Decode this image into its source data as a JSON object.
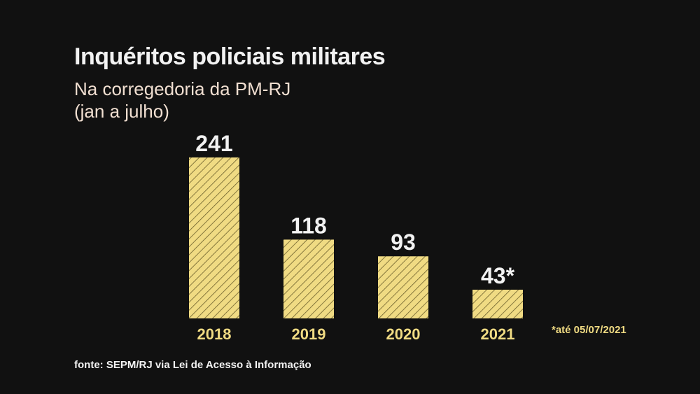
{
  "chart_data": {
    "type": "bar",
    "title": "Inquéritos policiais militares",
    "subtitle_lines": [
      "Na corregedoria da PM-RJ",
      "(jan a julho)"
    ],
    "categories": [
      "2018",
      "2019",
      "2020",
      "2021"
    ],
    "values": [
      241,
      118,
      93,
      43
    ],
    "data_labels": [
      "241",
      "118",
      "93",
      "43*"
    ],
    "xlabel": "",
    "ylabel": "",
    "ylim": [
      0,
      241
    ],
    "grid": false,
    "legend": "none",
    "footnote": "*até 05/07/2021",
    "source": "fonte: SEPM/RJ via Lei de Acesso à Informação"
  },
  "colors": {
    "background": "#111111",
    "bar_fill": "#f0db83",
    "bar_hatch": "#6b5f2c",
    "title": "#f2f2f2",
    "subtitle": "#f1dfd1",
    "tick_label": "#f0db83",
    "value_label": "#f2f2f2"
  }
}
